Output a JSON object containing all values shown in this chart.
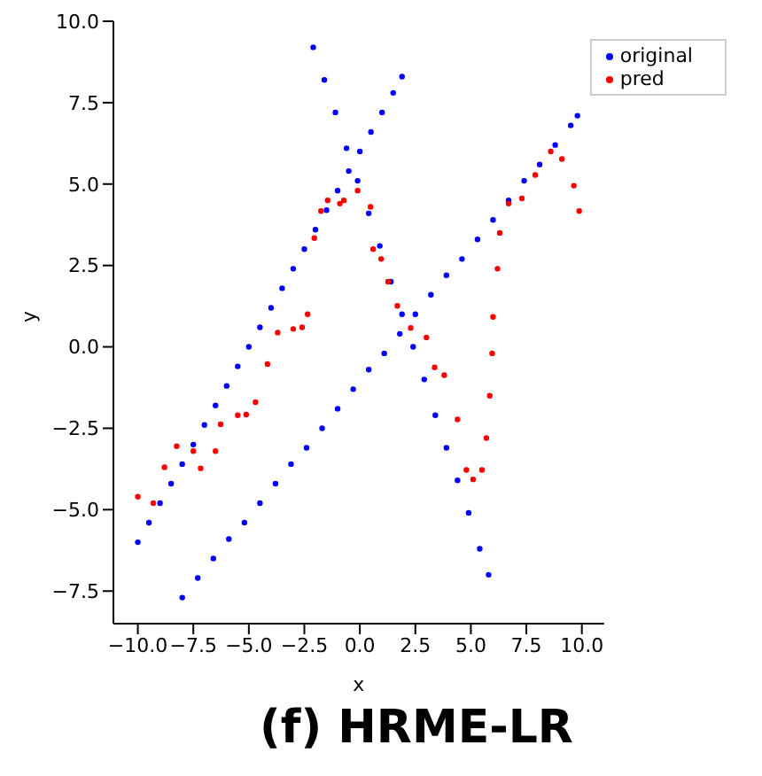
{
  "chart_data": {
    "type": "scatter",
    "title": "(f) HRME-LR",
    "xlabel": "x",
    "ylabel": "y",
    "xlim": [
      -11.1,
      11
    ],
    "ylim": [
      -8.5,
      10
    ],
    "xticks": [
      {
        "value": -10,
        "label": "−10.0"
      },
      {
        "value": -7.5,
        "label": "−7.5"
      },
      {
        "value": -5,
        "label": "−5.0"
      },
      {
        "value": -2.5,
        "label": "−2.5"
      },
      {
        "value": 0,
        "label": "0.0"
      },
      {
        "value": 2.5,
        "label": "2.5"
      },
      {
        "value": 5,
        "label": "5.0"
      },
      {
        "value": 7.5,
        "label": "7.5"
      },
      {
        "value": 10,
        "label": "10.0"
      }
    ],
    "yticks": [
      {
        "value": -7.5,
        "label": "−7.5"
      },
      {
        "value": -5,
        "label": "−5.0"
      },
      {
        "value": -2.5,
        "label": "−2.5"
      },
      {
        "value": 0,
        "label": "0.0"
      },
      {
        "value": 2.5,
        "label": "2.5"
      },
      {
        "value": 5,
        "label": "5.0"
      },
      {
        "value": 7.5,
        "label": "7.5"
      },
      {
        "value": 10,
        "label": "10.0"
      }
    ],
    "grid": false,
    "legend": "top right",
    "marker": "circle",
    "series": [
      {
        "name": "original",
        "color": "#0000ff",
        "x": [
          -10,
          -9.5,
          -9,
          -8.5,
          -8,
          -7.5,
          -7,
          -6.5,
          -6,
          -5.5,
          -5,
          -4.5,
          -4,
          -3.5,
          -3,
          -2.5,
          -2,
          -1.5,
          -1,
          -0.5,
          0,
          0.5,
          1,
          1.5,
          1.9,
          -2.1,
          -1.6,
          -1.1,
          -0.6,
          -0.1,
          0.4,
          0.9,
          1.4,
          1.9,
          2.4,
          2.9,
          3.4,
          3.9,
          4.4,
          4.9,
          5.4,
          5.8,
          -8,
          -7.3,
          -6.6,
          -5.9,
          -5.2,
          -4.5,
          -3.8,
          -3.1,
          -2.4,
          -1.7,
          -1,
          -0.3,
          0.4,
          1.1,
          1.8,
          2.5,
          3.2,
          3.9,
          4.6,
          5.3,
          6,
          6.7,
          7.4,
          8.1,
          8.8,
          9.5,
          9.8
        ],
        "values": [
          -6,
          -5.4,
          -4.8,
          -4.2,
          -3.6,
          -3,
          -2.4,
          -1.8,
          -1.2,
          -0.6,
          0,
          0.6,
          1.2,
          1.8,
          2.4,
          3,
          3.6,
          4.2,
          4.8,
          5.4,
          6,
          6.6,
          7.2,
          7.8,
          8.3,
          9.2,
          8.2,
          7.2,
          6.1,
          5.1,
          4.1,
          3.1,
          2,
          1,
          0,
          -1,
          -2.1,
          -3.1,
          -4.1,
          -5.1,
          -6.2,
          -7,
          -7.7,
          -7.1,
          -6.5,
          -5.9,
          -5.4,
          -4.8,
          -4.2,
          -3.6,
          -3.1,
          -2.5,
          -1.9,
          -1.3,
          -0.7,
          -0.2,
          0.4,
          1,
          1.6,
          2.2,
          2.7,
          3.3,
          3.9,
          4.5,
          5.1,
          5.6,
          6.2,
          6.8,
          7.1
        ]
      },
      {
        "name": "pred",
        "color": "#ff0000",
        "x": [
          -10,
          -9.3,
          -8.8,
          -8.25,
          -7.5,
          -7.17,
          -6.5,
          -6.27,
          -5.5,
          -5.12,
          -4.7,
          -4.16,
          -3.7,
          -3,
          -2.6,
          -2.35,
          -2.05,
          -1.75,
          -1.45,
          -0.9,
          -0.72,
          -0.1,
          0.48,
          0.6,
          0.96,
          1.27,
          1.69,
          2.29,
          3,
          3.37,
          3.8,
          4.4,
          4.8,
          5.1,
          5.5,
          5.7,
          5.85,
          5.96,
          6,
          6.2,
          6.3,
          6.7,
          7.3,
          7.9,
          8.6,
          9.1,
          9.64,
          9.88
        ],
        "values": [
          -4.6,
          -4.8,
          -3.7,
          -3.05,
          -3.2,
          -3.73,
          -3.2,
          -2.38,
          -2.1,
          -2.08,
          -1.7,
          -0.53,
          0.44,
          0.55,
          0.6,
          1,
          3.34,
          4.17,
          4.5,
          4.4,
          4.5,
          4.8,
          4.3,
          3,
          2.7,
          2,
          1.26,
          0.58,
          0.29,
          -0.63,
          -0.87,
          -2.23,
          -3.78,
          -4.07,
          -3.78,
          -2.8,
          -1.5,
          -0.2,
          0.92,
          2.4,
          3.5,
          4.4,
          4.56,
          5.28,
          6,
          5.77,
          4.95,
          4.17
        ]
      }
    ]
  }
}
